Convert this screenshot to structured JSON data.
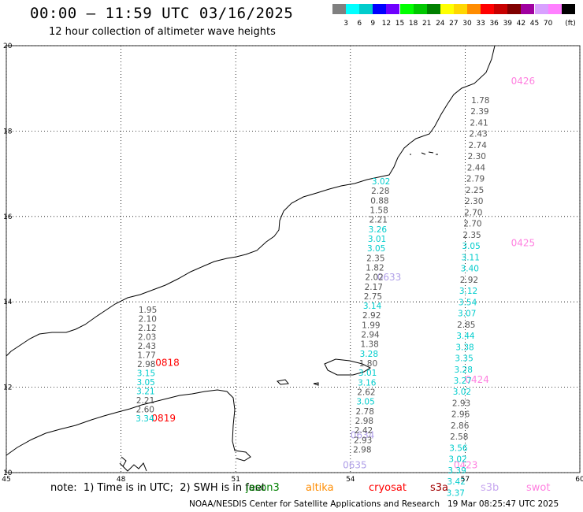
{
  "title": "00:00 – 11:59 UTC 03/16/2025",
  "subtitle": "12 hour collection of altimeter wave heights",
  "legend": {
    "unit": "(ft)",
    "items": [
      {
        "label": "",
        "color": "#808080"
      },
      {
        "label": "3",
        "color": "#00ffff"
      },
      {
        "label": "6",
        "color": "#00cccc"
      },
      {
        "label": "9",
        "color": "#0000ff"
      },
      {
        "label": "12",
        "color": "#6e00ff"
      },
      {
        "label": "15",
        "color": "#00ff00"
      },
      {
        "label": "18",
        "color": "#00c800"
      },
      {
        "label": "21",
        "color": "#008000"
      },
      {
        "label": "24",
        "color": "#ffff00"
      },
      {
        "label": "27",
        "color": "#ffd700"
      },
      {
        "label": "30",
        "color": "#ff8c00"
      },
      {
        "label": "33",
        "color": "#ff0000"
      },
      {
        "label": "36",
        "color": "#c80000"
      },
      {
        "label": "39",
        "color": "#800000"
      },
      {
        "label": "42",
        "color": "#a000a0"
      },
      {
        "label": "45",
        "color": "#d8a0ff"
      },
      {
        "label": "70",
        "color": "#ff80ff"
      },
      {
        "label": "",
        "color": "#000000"
      }
    ]
  },
  "axes": {
    "lon_ticks": [
      "45",
      "48",
      "51",
      "54",
      "57",
      "60"
    ],
    "lat_ticks": [
      "20",
      "18",
      "16",
      "14",
      "12",
      "10"
    ]
  },
  "colors": {
    "gray": "#555555",
    "cyan": "#00cccc",
    "red": "#ff0000",
    "violet": "#b0a0e8",
    "pink": "#ff80e0"
  },
  "passes": [
    {
      "label": "0426",
      "lon": 58.2,
      "lat": 19.1,
      "color": "pink"
    },
    {
      "label": "0425",
      "lon": 58.2,
      "lat": 15.3,
      "color": "pink"
    },
    {
      "label": "0424",
      "lon": 57.0,
      "lat": 12.1,
      "color": "pink"
    },
    {
      "label": "0423",
      "lon": 56.7,
      "lat": 10.1,
      "color": "pink"
    },
    {
      "label": "0633",
      "lon": 54.7,
      "lat": 14.5,
      "color": "violet"
    },
    {
      "label": "0634",
      "lon": 54.0,
      "lat": 10.8,
      "color": "violet"
    },
    {
      "label": "0635",
      "lon": 53.8,
      "lat": 10.1,
      "color": "violet"
    },
    {
      "label": "0818",
      "lon": 48.9,
      "lat": 12.5,
      "color": "red"
    },
    {
      "label": "0819",
      "lon": 48.8,
      "lat": 11.2,
      "color": "red"
    }
  ],
  "tracks": [
    {
      "lon": 57.4,
      "values": [
        [
          "1.78",
          "gray"
        ],
        [
          "2.39",
          "gray"
        ],
        [
          "2.41",
          "gray"
        ],
        [
          "2.43",
          "gray"
        ],
        [
          "2.74",
          "gray"
        ],
        [
          "2.30",
          "gray"
        ],
        [
          "2.44",
          "gray"
        ],
        [
          "2.79",
          "gray"
        ],
        [
          "2.25",
          "gray"
        ],
        [
          "2.30",
          "gray"
        ],
        [
          "2.70",
          "gray"
        ],
        [
          "2.70",
          "gray"
        ],
        [
          "2.35",
          "gray"
        ],
        [
          "3.05",
          "cyan"
        ],
        [
          "3.11",
          "cyan"
        ],
        [
          "3.40",
          "cyan"
        ],
        [
          "2.92",
          "gray"
        ],
        [
          "3.12",
          "cyan"
        ],
        [
          "3.54",
          "cyan"
        ],
        [
          "3.07",
          "cyan"
        ],
        [
          "2.85",
          "gray"
        ],
        [
          "3.44",
          "cyan"
        ],
        [
          "3.38",
          "cyan"
        ],
        [
          "3.35",
          "cyan"
        ],
        [
          "3.28",
          "cyan"
        ],
        [
          "3.27",
          "cyan"
        ],
        [
          "3.02",
          "cyan"
        ],
        [
          "2.93",
          "gray"
        ],
        [
          "2.96",
          "gray"
        ],
        [
          "2.86",
          "gray"
        ],
        [
          "2.58",
          "gray"
        ],
        [
          "3.56",
          "cyan"
        ],
        [
          "3.02",
          "cyan"
        ],
        [
          "3.39",
          "cyan"
        ],
        [
          "3.42",
          "cyan"
        ],
        [
          "3.37",
          "cyan"
        ]
      ]
    },
    {
      "lon": 54.8,
      "values": [
        [
          "3.02",
          "cyan"
        ],
        [
          "2.28",
          "gray"
        ],
        [
          "0.88",
          "gray"
        ],
        [
          "1.58",
          "gray"
        ],
        [
          "2.21",
          "gray"
        ],
        [
          "3.26",
          "cyan"
        ],
        [
          "3.01",
          "cyan"
        ],
        [
          "3.05",
          "cyan"
        ],
        [
          "2.35",
          "gray"
        ],
        [
          "1.82",
          "gray"
        ],
        [
          "2.02",
          "gray"
        ],
        [
          "2.17",
          "gray"
        ],
        [
          "2.75",
          "gray"
        ],
        [
          "3.14",
          "cyan"
        ],
        [
          "2.92",
          "gray"
        ],
        [
          "1.99",
          "gray"
        ],
        [
          "2.94",
          "gray"
        ],
        [
          "1.38",
          "gray"
        ],
        [
          "3.28",
          "cyan"
        ],
        [
          "1.80",
          "gray"
        ],
        [
          "3.01",
          "cyan"
        ],
        [
          "3.16",
          "cyan"
        ],
        [
          "2.62",
          "gray"
        ],
        [
          "3.05",
          "cyan"
        ],
        [
          "2.78",
          "gray"
        ],
        [
          "2.98",
          "gray"
        ],
        [
          "2.42",
          "gray"
        ],
        [
          "2.93",
          "gray"
        ],
        [
          "2.98",
          "gray"
        ]
      ]
    },
    {
      "lon": 48.7,
      "values": [
        [
          "1.95",
          "gray"
        ],
        [
          "2.10",
          "gray"
        ],
        [
          "2.12",
          "gray"
        ],
        [
          "2.03",
          "gray"
        ],
        [
          "2.43",
          "gray"
        ],
        [
          "1.77",
          "gray"
        ],
        [
          "2.98",
          "gray"
        ],
        [
          "3.15",
          "cyan"
        ],
        [
          "3.05",
          "cyan"
        ],
        [
          "3.21",
          "cyan"
        ],
        [
          "2.21",
          "gray"
        ],
        [
          "2.60",
          "gray"
        ],
        [
          "3.34",
          "cyan"
        ]
      ]
    }
  ],
  "footer": {
    "note": "note:  1) Time is in UTC;  2) SWH is in feet",
    "sats": [
      {
        "label": "jason3",
        "color": "#008000"
      },
      {
        "label": "altika",
        "color": "#ff8c00"
      },
      {
        "label": "cryosat",
        "color": "#ff0000"
      },
      {
        "label": "s3a",
        "color": "#a00000"
      },
      {
        "label": "s3b",
        "color": "#c8a8f0"
      },
      {
        "label": "swot",
        "color": "#ff80e0"
      }
    ],
    "credit": "NOAA/NESDIS Center for Satellite Applications and Research",
    "timestamp": "19 Mar 08:25:47 UTC 2025"
  }
}
